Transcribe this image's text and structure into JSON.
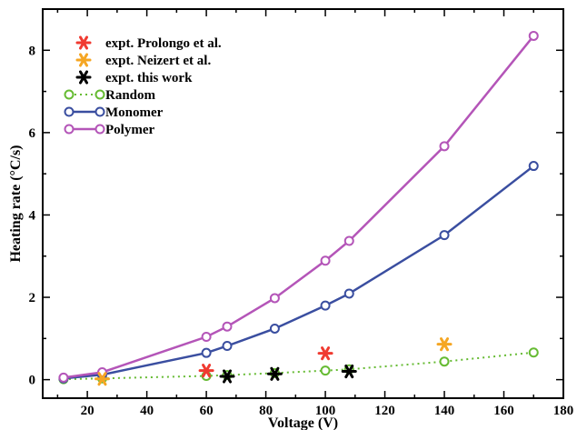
{
  "chart_data": {
    "type": "line",
    "xlabel": "Voltage (V)",
    "ylabel": "Heating rate (°C/s)",
    "xlim": [
      5,
      180
    ],
    "ylim": [
      -0.45,
      9.0
    ],
    "xticks": [
      20,
      40,
      60,
      80,
      100,
      120,
      140,
      160,
      180
    ],
    "yticks": [
      0,
      2,
      4,
      6,
      8
    ],
    "x_tick_labels": [
      "20",
      "40",
      "60",
      "80",
      "100",
      "120",
      "140",
      "160",
      "180"
    ],
    "y_tick_labels": [
      "0",
      "2",
      "4",
      "6",
      "8"
    ],
    "grid": false,
    "legend_position": "top-left",
    "series": [
      {
        "name": "expt. Prolongo et al.",
        "style": "star",
        "color": "#f03a30",
        "x": [
          60,
          100
        ],
        "y": [
          0.22,
          0.64
        ]
      },
      {
        "name": "expt. Neizert et al.",
        "style": "star",
        "color": "#f5a623",
        "x": [
          25,
          140
        ],
        "y": [
          0.02,
          0.86
        ]
      },
      {
        "name": "expt. this work",
        "style": "star",
        "color": "#000000",
        "x": [
          67,
          83,
          108
        ],
        "y": [
          0.08,
          0.14,
          0.2
        ]
      },
      {
        "name": "Random",
        "style": "dotted-circle",
        "color": "#66bb33",
        "x": [
          12,
          25,
          60,
          67,
          83,
          100,
          108,
          140,
          170
        ],
        "y": [
          0.01,
          0.03,
          0.09,
          0.11,
          0.16,
          0.22,
          0.25,
          0.44,
          0.66
        ]
      },
      {
        "name": "Monomer",
        "style": "solid-circle",
        "color": "#3a4ea0",
        "x": [
          12,
          25,
          60,
          67,
          83,
          100,
          108,
          140,
          170
        ],
        "y": [
          0.03,
          0.12,
          0.65,
          0.82,
          1.24,
          1.8,
          2.09,
          3.51,
          5.19
        ]
      },
      {
        "name": "Polymer",
        "style": "solid-circle",
        "color": "#b455b8",
        "x": [
          12,
          25,
          60,
          67,
          83,
          100,
          108,
          140,
          170
        ],
        "y": [
          0.05,
          0.18,
          1.04,
          1.29,
          1.98,
          2.89,
          3.37,
          5.67,
          8.35
        ]
      }
    ]
  }
}
